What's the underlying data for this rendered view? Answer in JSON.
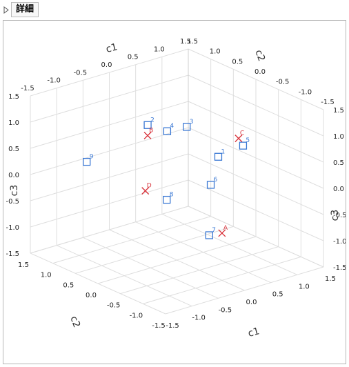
{
  "header": {
    "title": "詳細",
    "toggle_icon": "disclosure-triangle-right-icon"
  },
  "chart_data": {
    "type": "scatter3d",
    "axes": [
      {
        "name": "c1",
        "range": [
          -1.5,
          1.5
        ]
      },
      {
        "name": "c2",
        "range": [
          -1.5,
          1.5
        ]
      },
      {
        "name": "c3",
        "range": [
          -1.5,
          1.5
        ]
      }
    ],
    "grid": true,
    "rows_series": {
      "marker": "square",
      "color": "#3a78d4",
      "points": [
        {
          "label": "9",
          "c1": -1.2,
          "c2": 0.6,
          "c3": 0.5
        },
        {
          "label": "8",
          "c1": -0.45,
          "c2": -0.3,
          "c3": -0.1
        },
        {
          "label": "7",
          "c1": -0.2,
          "c2": -0.95,
          "c3": -0.6
        },
        {
          "label": "6",
          "c1": 0.3,
          "c2": -0.4,
          "c3": 0.0
        },
        {
          "label": "1",
          "c1": 0.7,
          "c2": -0.1,
          "c3": 0.3
        },
        {
          "label": "5",
          "c1": 1.0,
          "c2": -0.3,
          "c3": 0.5
        },
        {
          "label": "3",
          "c1": 0.7,
          "c2": 0.6,
          "c3": 0.6
        },
        {
          "label": "2",
          "c1": 0.3,
          "c2": 1.0,
          "c3": 0.6
        },
        {
          "label": "4",
          "c1": 0.5,
          "c2": 0.8,
          "c3": 0.5
        }
      ]
    },
    "columns_series": {
      "marker": "x",
      "color": "#d9363e",
      "points": [
        {
          "label": "D",
          "c1": -0.6,
          "c2": 0.0,
          "c3": 0.0
        },
        {
          "label": "A",
          "c1": 0.0,
          "c2": -1.0,
          "c3": -0.6
        },
        {
          "label": "B",
          "c1": 0.3,
          "c2": 1.0,
          "c3": 0.4
        },
        {
          "label": "C",
          "c1": 1.0,
          "c2": -0.2,
          "c3": 0.6
        }
      ]
    },
    "tick_values": [
      "-1.5",
      "-1.0",
      "-0.5",
      "0.0",
      "0.5",
      "1.0",
      "1.5"
    ]
  }
}
